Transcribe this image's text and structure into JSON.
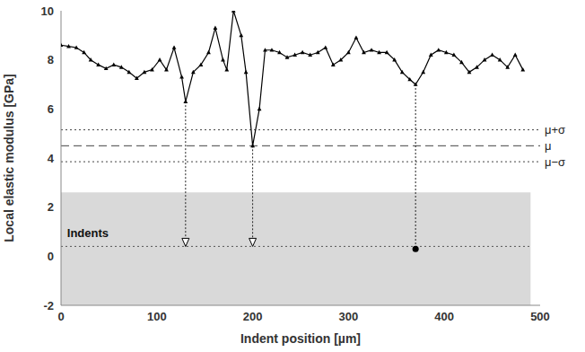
{
  "chart_data": {
    "type": "line",
    "x_label": "Indent position [µm]",
    "y_label": "Local elastic modulus [GPa]",
    "x": [
      0,
      8,
      16,
      24,
      31,
      39,
      47,
      55,
      63,
      71,
      79,
      87,
      95,
      103,
      110,
      118,
      126,
      130,
      138,
      146,
      154,
      161,
      169,
      173,
      180,
      188,
      193,
      200,
      207,
      213,
      220,
      228,
      236,
      244,
      252,
      260,
      268,
      276,
      284,
      292,
      300,
      308,
      316,
      324,
      332,
      340,
      348,
      356,
      364,
      370,
      378,
      386,
      394,
      402,
      410,
      418,
      426,
      434,
      442,
      450,
      458,
      466,
      474,
      482
    ],
    "values": [
      8.6,
      8.55,
      8.5,
      8.3,
      8.0,
      7.8,
      7.65,
      7.8,
      7.7,
      7.5,
      7.25,
      7.5,
      7.6,
      8.0,
      7.6,
      8.5,
      7.3,
      6.3,
      7.5,
      7.8,
      8.3,
      9.3,
      8.0,
      7.6,
      10.0,
      9.0,
      7.5,
      4.5,
      6.0,
      8.4,
      8.4,
      8.3,
      8.1,
      8.2,
      8.3,
      8.2,
      8.3,
      8.5,
      7.8,
      8.0,
      8.3,
      8.9,
      8.3,
      8.4,
      8.3,
      8.3,
      8.0,
      7.5,
      7.2,
      7.0,
      7.5,
      8.2,
      8.4,
      8.3,
      8.2,
      7.9,
      7.5,
      7.7,
      8.0,
      8.2,
      8.0,
      7.7,
      8.2,
      7.6
    ],
    "color": "#000000",
    "marker": "triangle",
    "xlim": [
      0,
      500
    ],
    "xticks": [
      0,
      100,
      200,
      300,
      400,
      500
    ],
    "ylim": [
      -2,
      10
    ],
    "yticks": [
      -2,
      0,
      2,
      4,
      6,
      8,
      10
    ],
    "grid": false,
    "reference_lines": [
      {
        "label": "μ+σ",
        "y": 5.15,
        "line_style": "dotted"
      },
      {
        "label": "μ",
        "y": 4.5,
        "line_style": "dashed"
      },
      {
        "label": "μ−σ",
        "y": 3.85,
        "line_style": "dotted"
      }
    ],
    "photo_area": {
      "x": [
        0,
        490
      ],
      "y": [
        -2,
        2.6
      ]
    },
    "indent_line": {
      "x": [
        0,
        490
      ],
      "y": 0.4
    },
    "annotation": {
      "text": "Indents",
      "x": 28,
      "y": 0.95
    },
    "arrows": [
      {
        "x": 130,
        "from": 6.3,
        "to": 0.4,
        "marker": "arrow"
      },
      {
        "x": 200,
        "from": 4.5,
        "to": 0.4,
        "marker": "arrow"
      },
      {
        "x": 370,
        "from": 7.0,
        "to": 0.3,
        "marker": "dot"
      }
    ]
  }
}
